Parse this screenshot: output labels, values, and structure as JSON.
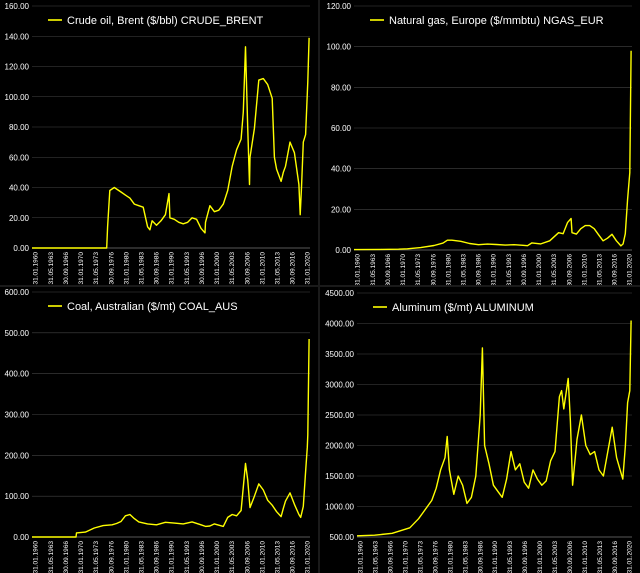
{
  "line_color": "#ffff00",
  "chart_data": [
    {
      "type": "line",
      "title": "",
      "series": [
        {
          "name": "Crude oil, Brent ($/bbl) CRUDE_BRENT"
        }
      ],
      "ylim": [
        0,
        160
      ],
      "y_ticks": [
        "0.00",
        "20.00",
        "40.00",
        "60.00",
        "80.00",
        "100.00",
        "120.00",
        "140.00",
        "160.00"
      ],
      "x_tick_labels": [
        "31.01.1960",
        "31.05.1963",
        "30.09.1966",
        "31.01.1970",
        "31.05.1973",
        "30.09.1976",
        "31.01.1980",
        "31.05.1983",
        "30.09.1986",
        "31.01.1990",
        "31.05.1993",
        "30.09.1996",
        "31.01.2000",
        "31.05.2003",
        "30.09.2006",
        "31.01.2010",
        "31.05.2013",
        "30.09.2016",
        "31.01.2020"
      ],
      "x": [
        1960,
        1970,
        1976.8,
        1977,
        1977.5,
        1978.5,
        1980,
        1981,
        1982,
        1983,
        1984,
        1985,
        1986,
        1986.5,
        1987,
        1988,
        1989,
        1990,
        1990.8,
        1991,
        1992,
        1993,
        1994,
        1995,
        1996,
        1997,
        1998,
        1998.9,
        1999,
        2000,
        2001,
        2002,
        2003,
        2004,
        2005,
        2006,
        2007,
        2007.5,
        2008,
        2008.5,
        2008.9,
        2009,
        2010,
        2011,
        2012,
        2013,
        2014,
        2014.5,
        2015,
        2016,
        2016.5,
        2017,
        2018,
        2019,
        2020,
        2020.3,
        2020.6,
        2021,
        2021.5,
        2022,
        2022.3
      ],
      "values": [
        0,
        0,
        0,
        14,
        38,
        40,
        37,
        35,
        33,
        29,
        28,
        27,
        14,
        12,
        18,
        15,
        18,
        22,
        36,
        20,
        19,
        17,
        16,
        17,
        20,
        19,
        13,
        10,
        17,
        28,
        24,
        25,
        29,
        38,
        54,
        65,
        72,
        90,
        133,
        80,
        42,
        60,
        79,
        111,
        112,
        108,
        99,
        60,
        52,
        44,
        50,
        54,
        70,
        63,
        42,
        22,
        40,
        70,
        75,
        110,
        139
      ]
    },
    {
      "type": "line",
      "title": "",
      "series": [
        {
          "name": "Natural gas, Europe ($/mmbtu) NGAS_EUR"
        }
      ],
      "ylim": [
        0,
        120
      ],
      "y_ticks": [
        "0.00",
        "20.00",
        "40.00",
        "60.00",
        "80.00",
        "100.00",
        "120.00"
      ],
      "x_tick_labels": [
        "31.01.1960",
        "31.05.1963",
        "30.09.1966",
        "31.01.1970",
        "31.05.1973",
        "30.09.1976",
        "31.01.1980",
        "31.05.1983",
        "30.09.1986",
        "31.01.1990",
        "31.05.1993",
        "30.09.1996",
        "31.01.2000",
        "31.05.2003",
        "30.09.2006",
        "31.01.2010",
        "31.05.2013",
        "30.09.2016",
        "31.01.2020"
      ],
      "x": [
        1960,
        1966,
        1970,
        1972,
        1975,
        1978,
        1980,
        1981,
        1982,
        1984,
        1986,
        1988,
        1990,
        1992,
        1994,
        1996,
        1998,
        1999,
        2000,
        2002,
        2004,
        2006,
        2007,
        2008,
        2008.8,
        2009,
        2010,
        2011,
        2012,
        2013,
        2014,
        2015,
        2016,
        2017,
        2018,
        2019,
        2020,
        2020.5,
        2021,
        2021.5,
        2022,
        2022.3
      ],
      "values": [
        0.2,
        0.3,
        0.4,
        0.6,
        1.2,
        2.2,
        3.4,
        4.8,
        4.8,
        4.3,
        3.2,
        2.6,
        2.9,
        2.7,
        2.4,
        2.6,
        2.3,
        2.1,
        3.5,
        3.0,
        4.5,
        8.5,
        8.0,
        13.5,
        15.5,
        8.5,
        7.8,
        10.5,
        12.0,
        12.0,
        10.5,
        7.5,
        4.5,
        5.8,
        7.7,
        4.5,
        2.0,
        3.0,
        8.0,
        25,
        38,
        98
      ]
    },
    {
      "type": "line",
      "title": "",
      "series": [
        {
          "name": "Coal, Australian ($/mt) COAL_AUS"
        }
      ],
      "ylim": [
        0,
        600
      ],
      "y_ticks": [
        "0.00",
        "100.00",
        "200.00",
        "300.00",
        "400.00",
        "500.00",
        "600.00"
      ],
      "x_tick_labels": [
        "31.01.1960",
        "31.05.1963",
        "30.09.1966",
        "31.01.1970",
        "31.05.1973",
        "30.09.1976",
        "31.01.1980",
        "31.05.1983",
        "30.09.1986",
        "31.01.1990",
        "31.05.1993",
        "30.09.1996",
        "31.01.2000",
        "31.05.2003",
        "30.09.2006",
        "31.01.2010",
        "31.05.2013",
        "30.09.2016",
        "31.01.2020"
      ],
      "x": [
        1960,
        1969.9,
        1970,
        1972,
        1974,
        1976,
        1978,
        1979,
        1980,
        1981,
        1982,
        1983,
        1984,
        1986,
        1988,
        1990,
        1992,
        1994,
        1996,
        1998,
        1999,
        2000,
        2001,
        2003,
        2004,
        2005,
        2006,
        2007,
        2008,
        2008.5,
        2009,
        2010,
        2011,
        2012,
        2013,
        2014,
        2015,
        2016,
        2016.5,
        2017,
        2018,
        2019,
        2020,
        2020.4,
        2021,
        2021.5,
        2021.9,
        2022,
        2022.3
      ],
      "values": [
        0,
        0,
        10,
        12,
        22,
        28,
        30,
        33,
        38,
        52,
        55,
        45,
        37,
        32,
        30,
        36,
        34,
        32,
        37,
        30,
        26,
        27,
        32,
        26,
        48,
        55,
        52,
        65,
        180,
        140,
        72,
        100,
        130,
        115,
        90,
        78,
        62,
        50,
        70,
        88,
        108,
        80,
        55,
        48,
        75,
        160,
        220,
        250,
        485
      ]
    },
    {
      "type": "line",
      "title": "",
      "series": [
        {
          "name": "Aluminum ($/mt) ALUMINUM"
        }
      ],
      "ylim": [
        500,
        4500
      ],
      "y_ticks": [
        "500.00",
        "1000.00",
        "1500.00",
        "2000.00",
        "2500.00",
        "3000.00",
        "3500.00",
        "4000.00",
        "4500.00"
      ],
      "x_tick_labels": [
        "31.01.1960",
        "31.05.1963",
        "30.09.1966",
        "31.01.1970",
        "31.05.1973",
        "30.09.1976",
        "31.01.1980",
        "31.05.1983",
        "30.09.1986",
        "31.01.1990",
        "31.05.1993",
        "30.09.1996",
        "31.01.2000",
        "31.05.2003",
        "30.09.2006",
        "31.01.2010",
        "31.05.2013",
        "30.09.2016",
        "31.01.2020"
      ],
      "x": [
        1960,
        1964,
        1968,
        1972,
        1974,
        1975,
        1977,
        1978,
        1979,
        1980,
        1980.5,
        1981,
        1982,
        1983,
        1984,
        1985,
        1986,
        1987,
        1988,
        1988.5,
        1989,
        1990,
        1991,
        1992,
        1993,
        1994,
        1995,
        1996,
        1997,
        1998,
        1999,
        2000,
        2001,
        2002,
        2003,
        2004,
        2005,
        2006,
        2006.5,
        2007,
        2008,
        2008.5,
        2009,
        2010,
        2011,
        2012,
        2013,
        2014,
        2015,
        2016,
        2017,
        2018,
        2019,
        2020,
        2020.4,
        2021,
        2021.5,
        2022,
        2022.3
      ],
      "values": [
        520,
        530,
        560,
        650,
        800,
        900,
        1100,
        1300,
        1600,
        1800,
        2150,
        1600,
        1200,
        1500,
        1350,
        1050,
        1150,
        1500,
        2500,
        3600,
        2000,
        1700,
        1350,
        1250,
        1150,
        1450,
        1900,
        1600,
        1700,
        1400,
        1300,
        1600,
        1450,
        1350,
        1420,
        1750,
        1900,
        2800,
        2900,
        2600,
        3100,
        2400,
        1350,
        2100,
        2500,
        2000,
        1850,
        1900,
        1600,
        1500,
        1900,
        2300,
        1800,
        1550,
        1450,
        2000,
        2700,
        2900,
        4050
      ]
    }
  ]
}
